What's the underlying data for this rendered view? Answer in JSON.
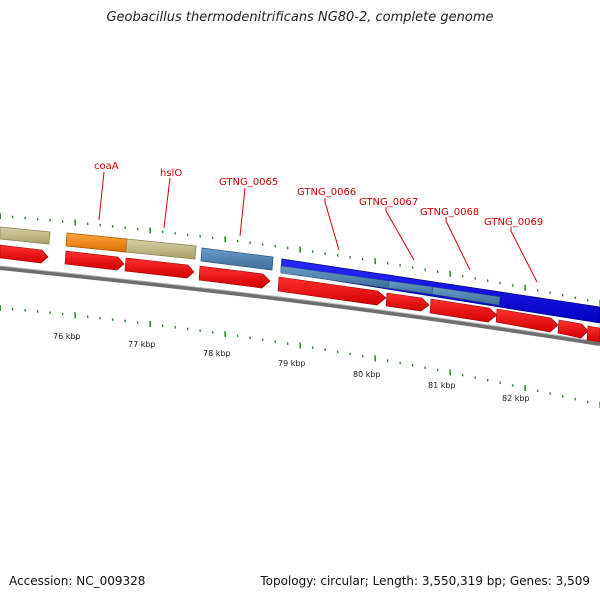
{
  "map": {
    "title": "Geobacillus thermodenitrificans NG80-2, complete genome"
  },
  "footer": {
    "accession": "Accession: NC_009328",
    "summary": "Topology: circular; Length: 3,550,319 bp; Genes: 3,509"
  },
  "gene_labels": [
    "coaA",
    "hslO",
    "GTNG_0065",
    "GTNG_0066",
    "GTNG_0067",
    "GTNG_0068",
    "GTNG_0069"
  ],
  "kbp_labels": [
    "76 kbp",
    "77 kbp",
    "78 kbp",
    "79 kbp",
    "80 kbp",
    "81 kbp",
    "82 kbp"
  ],
  "colors": {
    "label_red": "#d40000",
    "cds_red": "#ff0000",
    "khaki": "#c8c08a",
    "orange": "#ff8c1a",
    "steel_blue": "#4f86b8",
    "blue": "#0000ee",
    "tick_green": "#2e8b2e",
    "backbone": "#8a8a8a"
  }
}
